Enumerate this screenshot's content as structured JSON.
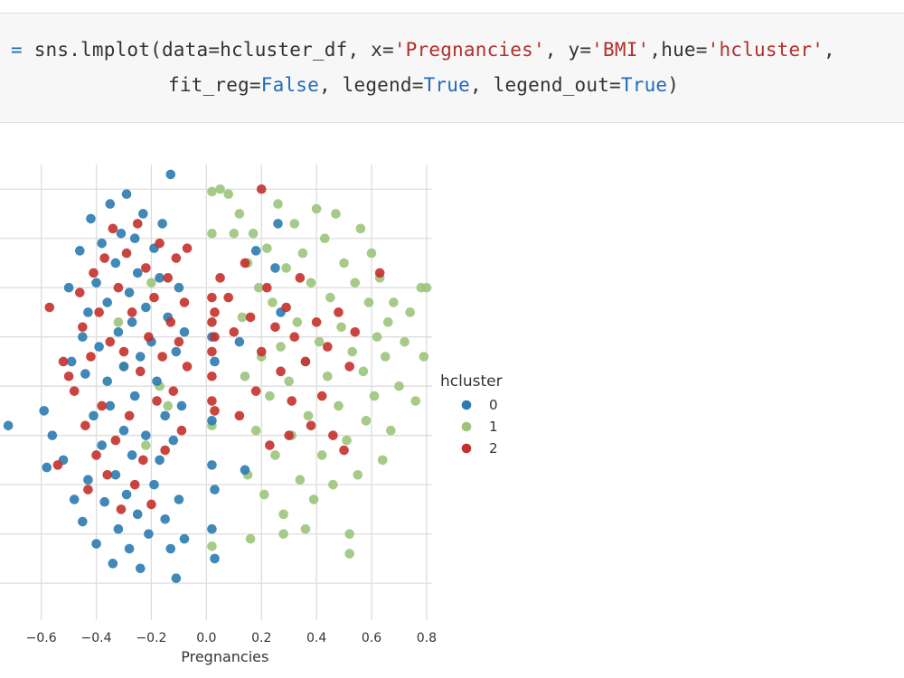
{
  "code_cell": {
    "line1": [
      {
        "t": "= ",
        "c": "op"
      },
      {
        "t": "sns.lmplot(data=hcluster_df, x=",
        "c": "plain"
      },
      {
        "t": "'Pregnancies'",
        "c": "str"
      },
      {
        "t": ", y=",
        "c": "plain"
      },
      {
        "t": "'BMI'",
        "c": "str"
      },
      {
        "t": ",hue=",
        "c": "plain"
      },
      {
        "t": "'hcluster'",
        "c": "str"
      },
      {
        "t": ",",
        "c": "plain"
      }
    ],
    "line2": [
      {
        "t": "fit_reg=",
        "c": "plain"
      },
      {
        "t": "False",
        "c": "kw"
      },
      {
        "t": ", legend=",
        "c": "plain"
      },
      {
        "t": "True",
        "c": "kw"
      },
      {
        "t": ", legend_out=",
        "c": "plain"
      },
      {
        "t": "True",
        "c": "kw"
      },
      {
        "t": ")",
        "c": "plain"
      }
    ]
  },
  "colors": {
    "cluster_0": "#2b7bb0",
    "cluster_1": "#9cc47a",
    "cluster_2": "#c4302b",
    "grid": "#dddddd"
  },
  "chart_data": {
    "type": "scatter",
    "xlabel": "Pregnancies",
    "ylabel": "",
    "xlim": [
      -0.75,
      0.82
    ],
    "ylim": [
      -0.95,
      0.9
    ],
    "x_ticks": [
      -0.6,
      -0.4,
      -0.2,
      0.0,
      0.2,
      0.4,
      0.6,
      0.8
    ],
    "x_tick_labels": [
      "−0.6",
      "−0.4",
      "−0.2",
      "0.0",
      "0.2",
      "0.4",
      "0.6",
      "0.8"
    ],
    "y_gridlines": [
      -0.8,
      -0.6,
      -0.4,
      -0.2,
      0.0,
      0.2,
      0.4,
      0.6,
      0.8
    ],
    "grid": true,
    "legend": {
      "title": "hcluster",
      "placement": "right",
      "entries": [
        "0",
        "1",
        "2"
      ]
    },
    "series": [
      {
        "name": "0",
        "points": [
          [
            -0.72,
            -0.16
          ],
          [
            -0.59,
            -0.1
          ],
          [
            -0.58,
            -0.33
          ],
          [
            -0.56,
            -0.2
          ],
          [
            -0.52,
            -0.3
          ],
          [
            -0.5,
            0.4
          ],
          [
            -0.49,
            0.1
          ],
          [
            -0.48,
            -0.46
          ],
          [
            -0.46,
            0.55
          ],
          [
            -0.45,
            0.2
          ],
          [
            -0.45,
            -0.55
          ],
          [
            -0.44,
            0.05
          ],
          [
            -0.43,
            0.3
          ],
          [
            -0.43,
            -0.38
          ],
          [
            -0.42,
            0.68
          ],
          [
            -0.41,
            -0.12
          ],
          [
            -0.4,
            0.42
          ],
          [
            -0.4,
            -0.64
          ],
          [
            -0.39,
            0.16
          ],
          [
            -0.38,
            0.58
          ],
          [
            -0.38,
            -0.24
          ],
          [
            -0.37,
            -0.47
          ],
          [
            -0.36,
            0.34
          ],
          [
            -0.36,
            0.02
          ],
          [
            -0.35,
            0.74
          ],
          [
            -0.35,
            -0.08
          ],
          [
            -0.34,
            -0.72
          ],
          [
            -0.33,
            0.5
          ],
          [
            -0.33,
            -0.36
          ],
          [
            -0.32,
            0.22
          ],
          [
            -0.32,
            -0.58
          ],
          [
            -0.31,
            0.62
          ],
          [
            -0.3,
            0.08
          ],
          [
            -0.3,
            -0.18
          ],
          [
            -0.29,
            0.78
          ],
          [
            -0.29,
            -0.44
          ],
          [
            -0.28,
            0.38
          ],
          [
            -0.28,
            -0.66
          ],
          [
            -0.27,
            0.26
          ],
          [
            -0.27,
            -0.28
          ],
          [
            -0.26,
            0.6
          ],
          [
            -0.26,
            -0.04
          ],
          [
            -0.25,
            -0.52
          ],
          [
            -0.25,
            0.46
          ],
          [
            -0.24,
            0.12
          ],
          [
            -0.24,
            -0.74
          ],
          [
            -0.23,
            0.7
          ],
          [
            -0.22,
            -0.2
          ],
          [
            -0.22,
            0.32
          ],
          [
            -0.21,
            -0.6
          ],
          [
            -0.2,
            0.18
          ],
          [
            -0.19,
            0.56
          ],
          [
            -0.19,
            -0.4
          ],
          [
            -0.18,
            0.02
          ],
          [
            -0.17,
            0.44
          ],
          [
            -0.17,
            -0.3
          ],
          [
            -0.16,
            0.66
          ],
          [
            -0.15,
            -0.12
          ],
          [
            -0.15,
            -0.54
          ],
          [
            -0.14,
            0.28
          ],
          [
            -0.13,
            0.86
          ],
          [
            -0.13,
            -0.66
          ],
          [
            -0.12,
            -0.22
          ],
          [
            -0.11,
            0.14
          ],
          [
            -0.11,
            -0.78
          ],
          [
            -0.1,
            0.4
          ],
          [
            -0.1,
            -0.46
          ],
          [
            -0.09,
            -0.08
          ],
          [
            -0.08,
            0.22
          ],
          [
            -0.08,
            -0.62
          ],
          [
            0.02,
            0.2
          ],
          [
            0.02,
            -0.14
          ],
          [
            0.02,
            -0.32
          ],
          [
            0.02,
            -0.58
          ],
          [
            0.03,
            0.1
          ],
          [
            0.03,
            -0.7
          ],
          [
            0.03,
            -0.42
          ],
          [
            0.12,
            0.18
          ],
          [
            0.14,
            -0.34
          ],
          [
            0.18,
            0.55
          ],
          [
            0.25,
            0.48
          ],
          [
            0.26,
            0.66
          ],
          [
            0.27,
            0.3
          ]
        ]
      },
      {
        "name": "1",
        "points": [
          [
            -0.32,
            0.26
          ],
          [
            -0.3,
            0.08
          ],
          [
            -0.22,
            -0.24
          ],
          [
            -0.2,
            0.42
          ],
          [
            -0.17,
            0.0
          ],
          [
            -0.14,
            -0.08
          ],
          [
            0.02,
            0.79
          ],
          [
            0.02,
            -0.16
          ],
          [
            0.02,
            -0.65
          ],
          [
            0.02,
            0.62
          ],
          [
            0.05,
            0.8
          ],
          [
            0.08,
            0.78
          ],
          [
            0.1,
            0.62
          ],
          [
            0.12,
            0.7
          ],
          [
            0.13,
            0.28
          ],
          [
            0.14,
            0.04
          ],
          [
            0.15,
            0.5
          ],
          [
            0.15,
            -0.36
          ],
          [
            0.16,
            -0.62
          ],
          [
            0.17,
            0.62
          ],
          [
            0.18,
            -0.18
          ],
          [
            0.19,
            0.4
          ],
          [
            0.2,
            0.12
          ],
          [
            0.21,
            -0.44
          ],
          [
            0.22,
            0.56
          ],
          [
            0.23,
            -0.04
          ],
          [
            0.24,
            0.34
          ],
          [
            0.25,
            -0.28
          ],
          [
            0.26,
            0.74
          ],
          [
            0.27,
            0.16
          ],
          [
            0.28,
            -0.52
          ],
          [
            0.29,
            0.48
          ],
          [
            0.3,
            0.02
          ],
          [
            0.31,
            -0.2
          ],
          [
            0.32,
            0.66
          ],
          [
            0.33,
            0.26
          ],
          [
            0.34,
            -0.38
          ],
          [
            0.35,
            0.54
          ],
          [
            0.36,
            0.1
          ],
          [
            0.37,
            -0.12
          ],
          [
            0.38,
            0.42
          ],
          [
            0.39,
            -0.46
          ],
          [
            0.4,
            0.72
          ],
          [
            0.41,
            0.18
          ],
          [
            0.42,
            -0.28
          ],
          [
            0.43,
            0.6
          ],
          [
            0.44,
            0.04
          ],
          [
            0.45,
            0.36
          ],
          [
            0.46,
            -0.4
          ],
          [
            0.47,
            0.7
          ],
          [
            0.48,
            -0.08
          ],
          [
            0.49,
            0.24
          ],
          [
            0.5,
            0.5
          ],
          [
            0.51,
            -0.22
          ],
          [
            0.52,
            -0.6
          ],
          [
            0.53,
            0.14
          ],
          [
            0.54,
            0.42
          ],
          [
            0.55,
            -0.36
          ],
          [
            0.56,
            0.64
          ],
          [
            0.57,
            0.06
          ],
          [
            0.58,
            -0.14
          ],
          [
            0.59,
            0.34
          ],
          [
            0.6,
            0.54
          ],
          [
            0.61,
            -0.04
          ],
          [
            0.62,
            0.2
          ],
          [
            0.63,
            0.44
          ],
          [
            0.64,
            -0.3
          ],
          [
            0.65,
            0.12
          ],
          [
            0.66,
            0.26
          ],
          [
            0.67,
            -0.18
          ],
          [
            0.68,
            0.34
          ],
          [
            0.7,
            0.0
          ],
          [
            0.72,
            0.18
          ],
          [
            0.74,
            0.3
          ],
          [
            0.76,
            -0.06
          ],
          [
            0.78,
            0.4
          ],
          [
            0.79,
            0.12
          ],
          [
            0.8,
            0.4
          ],
          [
            0.52,
            -0.68
          ],
          [
            0.28,
            -0.6
          ],
          [
            0.36,
            -0.58
          ]
        ]
      },
      {
        "name": "2",
        "points": [
          [
            -0.57,
            0.32
          ],
          [
            -0.54,
            -0.32
          ],
          [
            -0.52,
            0.1
          ],
          [
            -0.5,
            0.04
          ],
          [
            -0.48,
            -0.02
          ],
          [
            -0.46,
            0.38
          ],
          [
            -0.45,
            0.24
          ],
          [
            -0.44,
            -0.16
          ],
          [
            -0.43,
            -0.42
          ],
          [
            -0.42,
            0.12
          ],
          [
            -0.41,
            0.46
          ],
          [
            -0.4,
            -0.28
          ],
          [
            -0.39,
            0.3
          ],
          [
            -0.38,
            -0.08
          ],
          [
            -0.37,
            0.52
          ],
          [
            -0.36,
            -0.36
          ],
          [
            -0.35,
            0.18
          ],
          [
            -0.34,
            0.64
          ],
          [
            -0.33,
            -0.22
          ],
          [
            -0.32,
            0.4
          ],
          [
            -0.31,
            -0.5
          ],
          [
            -0.3,
            0.14
          ],
          [
            -0.29,
            0.54
          ],
          [
            -0.28,
            -0.12
          ],
          [
            -0.27,
            0.3
          ],
          [
            -0.26,
            -0.4
          ],
          [
            -0.25,
            0.66
          ],
          [
            -0.24,
            0.06
          ],
          [
            -0.23,
            -0.3
          ],
          [
            -0.22,
            0.48
          ],
          [
            -0.21,
            0.2
          ],
          [
            -0.2,
            -0.48
          ],
          [
            -0.19,
            0.36
          ],
          [
            -0.18,
            -0.06
          ],
          [
            -0.17,
            0.58
          ],
          [
            -0.16,
            0.12
          ],
          [
            -0.15,
            -0.26
          ],
          [
            -0.14,
            0.44
          ],
          [
            -0.13,
            0.26
          ],
          [
            -0.12,
            -0.02
          ],
          [
            -0.11,
            0.52
          ],
          [
            -0.1,
            0.18
          ],
          [
            -0.09,
            -0.18
          ],
          [
            -0.08,
            0.34
          ],
          [
            -0.07,
            0.08
          ],
          [
            -0.07,
            0.56
          ],
          [
            0.02,
            0.36
          ],
          [
            0.02,
            0.26
          ],
          [
            0.02,
            0.14
          ],
          [
            0.02,
            0.04
          ],
          [
            0.02,
            -0.06
          ],
          [
            0.03,
            0.3
          ],
          [
            0.03,
            0.2
          ],
          [
            0.03,
            -0.1
          ],
          [
            0.05,
            0.44
          ],
          [
            0.08,
            0.36
          ],
          [
            0.1,
            0.22
          ],
          [
            0.12,
            -0.12
          ],
          [
            0.14,
            0.5
          ],
          [
            0.16,
            0.28
          ],
          [
            0.18,
            -0.02
          ],
          [
            0.2,
            0.14
          ],
          [
            0.22,
            0.4
          ],
          [
            0.23,
            -0.24
          ],
          [
            0.25,
            0.24
          ],
          [
            0.27,
            0.06
          ],
          [
            0.29,
            0.32
          ],
          [
            0.31,
            -0.06
          ],
          [
            0.32,
            0.2
          ],
          [
            0.34,
            0.44
          ],
          [
            0.36,
            0.1
          ],
          [
            0.38,
            -0.16
          ],
          [
            0.4,
            0.26
          ],
          [
            0.42,
            -0.04
          ],
          [
            0.44,
            0.16
          ],
          [
            0.46,
            -0.2
          ],
          [
            0.48,
            0.3
          ],
          [
            0.5,
            -0.26
          ],
          [
            0.52,
            0.08
          ],
          [
            0.54,
            0.22
          ],
          [
            0.2,
            0.8
          ],
          [
            0.63,
            0.46
          ],
          [
            0.3,
            -0.2
          ]
        ]
      }
    ]
  }
}
